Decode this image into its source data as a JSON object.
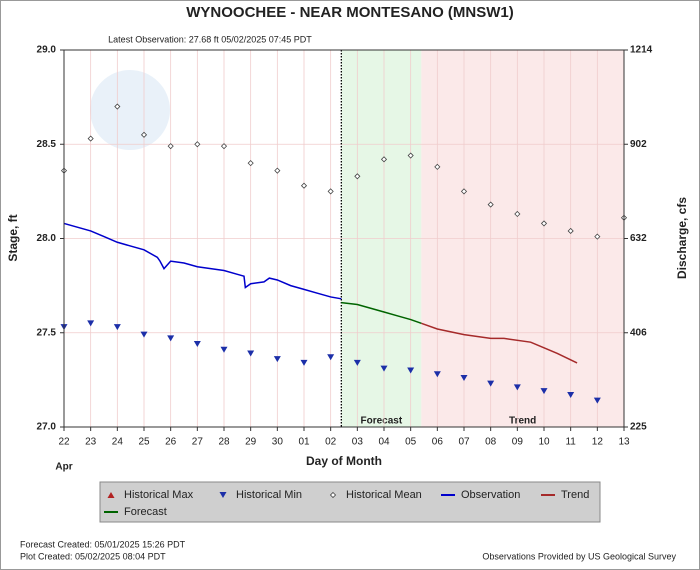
{
  "chart_data": {
    "type": "hydrograph",
    "title": "WYNOOCHEE - NEAR MONTESANO  (MNSW1)",
    "subtitle": "Latest Observation: 27.68 ft 05/02/2025 07:45 PDT",
    "y_label": "Stage, ft",
    "y2_label": "Discharge, cfs",
    "x_label": "Day of Month",
    "month_label": "Apr",
    "xlim": [
      0,
      21
    ],
    "xticks": [
      {
        "value": 0,
        "label": "22"
      },
      {
        "value": 1,
        "label": "23"
      },
      {
        "value": 2,
        "label": "24"
      },
      {
        "value": 3,
        "label": "25"
      },
      {
        "value": 4,
        "label": "26"
      },
      {
        "value": 5,
        "label": "27"
      },
      {
        "value": 6,
        "label": "28"
      },
      {
        "value": 7,
        "label": "29"
      },
      {
        "value": 8,
        "label": "30"
      },
      {
        "value": 9,
        "label": "01"
      },
      {
        "value": 10,
        "label": "02"
      },
      {
        "value": 11,
        "label": "03"
      },
      {
        "value": 12,
        "label": "04"
      },
      {
        "value": 13,
        "label": "05"
      },
      {
        "value": 14,
        "label": "06"
      },
      {
        "value": 15,
        "label": "07"
      },
      {
        "value": 16,
        "label": "08"
      },
      {
        "value": 17,
        "label": "09"
      },
      {
        "value": 18,
        "label": "10"
      },
      {
        "value": 19,
        "label": "11"
      },
      {
        "value": 20,
        "label": "12"
      },
      {
        "value": 21,
        "label": "13"
      }
    ],
    "ylim": [
      27,
      29
    ],
    "yticks": [
      {
        "value": 27,
        "label": "27.0"
      },
      27.5,
      {
        "value": 28,
        "label": "28.0"
      },
      28.5,
      {
        "value": 29,
        "label": "29.0"
      }
    ],
    "y2lim": [
      225,
      1214
    ],
    "y2ticks": [
      225,
      406,
      632,
      902,
      1214
    ],
    "grid": true,
    "regions": [
      {
        "label": "Forecast",
        "start": 10.4,
        "end": 13.4,
        "color": "#e6f7e6"
      },
      {
        "label": "Trend",
        "start": 13.4,
        "end": 21,
        "color": "#fbe9e9"
      }
    ],
    "series": [
      {
        "name": "Historical Max",
        "marker": "triangle-up",
        "color": "#b22222",
        "x": [],
        "values": []
      },
      {
        "name": "Historical Min",
        "marker": "triangle-down",
        "color": "#1c2fa8",
        "x": [
          0,
          1,
          2,
          3,
          4,
          5,
          6,
          7,
          8,
          9,
          10,
          11,
          12,
          13,
          14,
          15,
          16,
          17,
          18,
          19,
          20
        ],
        "values": [
          27.53,
          27.55,
          27.53,
          27.49,
          27.47,
          27.44,
          27.41,
          27.39,
          27.36,
          27.34,
          27.37,
          27.34,
          27.31,
          27.3,
          27.28,
          27.26,
          27.23,
          27.21,
          27.19,
          27.17,
          27.14
        ]
      },
      {
        "name": "Historical Mean",
        "marker": "diamond",
        "color": "#444444",
        "x": [
          0,
          1,
          2,
          3,
          4,
          5,
          6,
          7,
          8,
          9,
          10,
          11,
          12,
          13,
          14,
          15,
          16,
          17,
          18,
          19,
          20,
          21
        ],
        "values": [
          28.36,
          28.53,
          28.7,
          28.55,
          28.49,
          28.5,
          28.49,
          28.4,
          28.36,
          28.28,
          28.25,
          28.33,
          28.42,
          28.44,
          28.38,
          28.25,
          28.18,
          28.13,
          28.08,
          28.04,
          28.01,
          28.11
        ]
      },
      {
        "name": "Observation",
        "marker": "line",
        "color": "#0000cc",
        "x": [
          0,
          0.5,
          1,
          1.5,
          2,
          2.5,
          3,
          3.5,
          3.6,
          3.75,
          4,
          4.5,
          5,
          5.5,
          6,
          6.5,
          6.75,
          6.8,
          7,
          7.5,
          7.7,
          8,
          8.5,
          9,
          9.5,
          10,
          10.4
        ],
        "values": [
          28.08,
          28.06,
          28.04,
          28.01,
          27.98,
          27.96,
          27.94,
          27.9,
          27.88,
          27.84,
          27.88,
          27.87,
          27.85,
          27.84,
          27.83,
          27.81,
          27.8,
          27.74,
          27.76,
          27.77,
          27.79,
          27.78,
          27.75,
          27.73,
          27.71,
          27.69,
          27.68
        ]
      },
      {
        "name": "Trend",
        "marker": "line",
        "color": "#a52a2a",
        "x": [
          13.4,
          14,
          15,
          16,
          16.5,
          17.5,
          18,
          18.5,
          19.24
        ],
        "values": [
          27.55,
          27.52,
          27.49,
          27.47,
          27.47,
          27.45,
          27.42,
          27.39,
          27.34
        ]
      },
      {
        "name": "Forecast",
        "marker": "line",
        "color": "#006400",
        "x": [
          10.4,
          11,
          11.5,
          12,
          12.5,
          13,
          13.4
        ],
        "values": [
          27.66,
          27.65,
          27.63,
          27.61,
          27.59,
          27.57,
          27.55
        ]
      }
    ],
    "footer_left": [
      "Forecast Created: 05/01/2025 15:26 PDT",
      "Plot Created: 05/02/2025 08:04 PDT"
    ],
    "footer_right": "Observations Provided by US Geological Survey"
  }
}
